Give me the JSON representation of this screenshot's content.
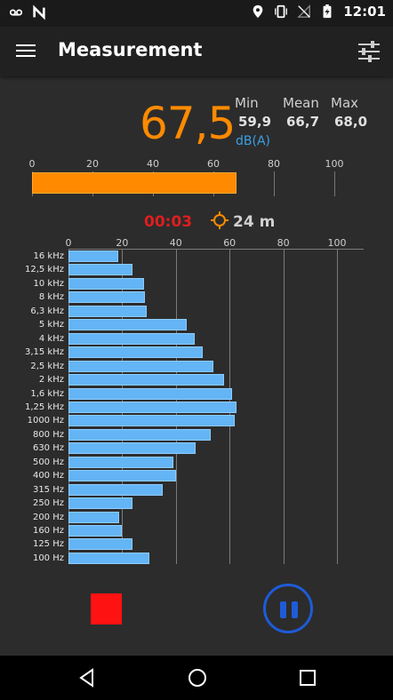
{
  "status_bar": {
    "time": "12:01",
    "left_icons": [
      "voicemail-icon",
      "n-notification-icon"
    ],
    "right_icons": [
      "location-icon",
      "vibrate-icon",
      "no-signal-icon",
      "battery-charging-icon"
    ]
  },
  "app_bar": {
    "title": "Measurement",
    "menu_icon": "hamburger-menu-icon",
    "settings_icon": "tune-sliders-icon"
  },
  "reading": {
    "current": "67,5",
    "min_label": "Min",
    "mean_label": "Mean",
    "max_label": "Max",
    "min_value": "59,9",
    "mean_value": "66,7",
    "max_value": "68,0",
    "unit": "dB(A)"
  },
  "level_meter": {
    "ticks": [
      "0",
      "20",
      "40",
      "60",
      "80",
      "100"
    ],
    "value": 67.5,
    "range": [
      0,
      100
    ],
    "color": "#ff8a00"
  },
  "timer": {
    "elapsed": "00:03",
    "distance": "24 m",
    "distance_icon": "crosshair-target-icon"
  },
  "spectrum": {
    "ticks": [
      "0",
      "20",
      "40",
      "60",
      "80",
      "100"
    ],
    "range": [
      0,
      110
    ],
    "bar_color": "#64b5f6",
    "bands": [
      {
        "label": "16 kHz",
        "value": 18.5
      },
      {
        "label": "12,5 kHz",
        "value": 24
      },
      {
        "label": "10 kHz",
        "value": 28
      },
      {
        "label": "8 kHz",
        "value": 28.5
      },
      {
        "label": "6,3 kHz",
        "value": 29
      },
      {
        "label": "5 kHz",
        "value": 44
      },
      {
        "label": "4 kHz",
        "value": 47
      },
      {
        "label": "3,15 kHz",
        "value": 50
      },
      {
        "label": "2,5 kHz",
        "value": 54
      },
      {
        "label": "2 kHz",
        "value": 58
      },
      {
        "label": "1,6 kHz",
        "value": 61
      },
      {
        "label": "1,25 kHz",
        "value": 62.5
      },
      {
        "label": "1000 Hz",
        "value": 62
      },
      {
        "label": "800 Hz",
        "value": 53
      },
      {
        "label": "630 Hz",
        "value": 47.5
      },
      {
        "label": "500 Hz",
        "value": 39
      },
      {
        "label": "400 Hz",
        "value": 40
      },
      {
        "label": "315 Hz",
        "value": 35
      },
      {
        "label": "250 Hz",
        "value": 24
      },
      {
        "label": "200 Hz",
        "value": 19
      },
      {
        "label": "160 Hz",
        "value": 20
      },
      {
        "label": "125 Hz",
        "value": 24
      },
      {
        "label": "100 Hz",
        "value": 30
      }
    ]
  },
  "controls": {
    "stop_color": "#ff1212",
    "pause_color": "#1e5bd8"
  },
  "nav_bar": {
    "back_icon": "back-triangle-icon",
    "home_icon": "home-circle-icon",
    "recents_icon": "recents-square-icon"
  }
}
